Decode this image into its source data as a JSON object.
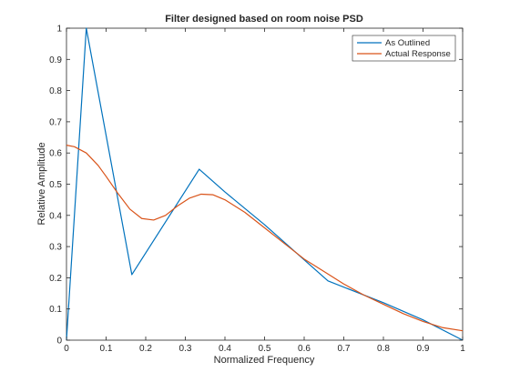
{
  "chart_data": {
    "type": "line",
    "title": "Filter designed based on room noise PSD",
    "xlabel": "Normalized Frequency",
    "ylabel": "Relative Amplitude",
    "xlim": [
      0,
      1
    ],
    "ylim": [
      0,
      1
    ],
    "x_ticks": [
      "0",
      "0.1",
      "0.2",
      "0.3",
      "0.4",
      "0.5",
      "0.6",
      "0.7",
      "0.8",
      "0.9",
      "1"
    ],
    "y_ticks": [
      "0",
      "0.1",
      "0.2",
      "0.3",
      "0.4",
      "0.5",
      "0.6",
      "0.7",
      "0.8",
      "0.9",
      "1"
    ],
    "grid": false,
    "legend_position": "top-right",
    "series": [
      {
        "name": "As Outlined",
        "color": "#0072BD",
        "x": [
          0,
          0.05,
          0.165,
          0.335,
          0.4,
          0.5,
          0.66,
          0.8,
          0.9,
          1.0
        ],
        "y": [
          0,
          1.0,
          0.21,
          0.548,
          0.475,
          0.37,
          0.19,
          0.12,
          0.065,
          0.0
        ]
      },
      {
        "name": "Actual Response",
        "color": "#D95319",
        "x": [
          0,
          0.02,
          0.05,
          0.08,
          0.1,
          0.13,
          0.16,
          0.19,
          0.22,
          0.25,
          0.28,
          0.31,
          0.34,
          0.37,
          0.4,
          0.45,
          0.5,
          0.55,
          0.6,
          0.65,
          0.7,
          0.75,
          0.8,
          0.85,
          0.9,
          0.95,
          1.0
        ],
        "y": [
          0.625,
          0.62,
          0.6,
          0.56,
          0.525,
          0.47,
          0.42,
          0.39,
          0.385,
          0.4,
          0.43,
          0.455,
          0.468,
          0.466,
          0.45,
          0.41,
          0.36,
          0.31,
          0.26,
          0.22,
          0.18,
          0.145,
          0.115,
          0.085,
          0.06,
          0.04,
          0.03
        ]
      }
    ]
  }
}
